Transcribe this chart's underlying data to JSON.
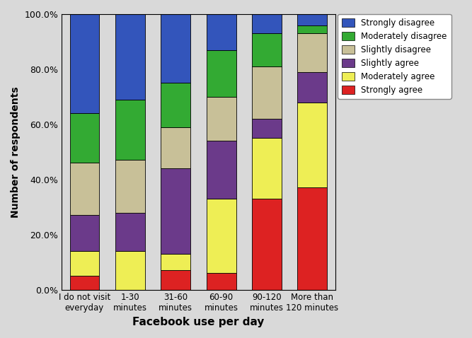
{
  "categories": [
    "I do not visit\neveryday",
    "1-30\nminutes",
    "31-60\nminutes",
    "60-90\nminutes",
    "90-120\nminutes",
    "More than\n120 minutes"
  ],
  "series": {
    "Strongly agree": [
      5.0,
      0.0,
      7.0,
      6.0,
      33.0,
      37.0
    ],
    "Moderately agree": [
      9.0,
      14.0,
      6.0,
      27.0,
      22.0,
      31.0
    ],
    "Slightly agree": [
      13.0,
      14.0,
      31.0,
      21.0,
      7.0,
      11.0
    ],
    "Slightly disagree": [
      19.0,
      19.0,
      15.0,
      16.0,
      19.0,
      14.0
    ],
    "Moderately disagree": [
      18.0,
      22.0,
      16.0,
      17.0,
      12.0,
      3.0
    ],
    "Strongly disagree": [
      36.0,
      31.0,
      25.0,
      13.0,
      7.0,
      4.0
    ]
  },
  "colors": {
    "Strongly agree": "#dd2222",
    "Moderately agree": "#eeee55",
    "Slightly agree": "#6b3a8a",
    "Slightly disagree": "#c8c098",
    "Moderately disagree": "#33aa33",
    "Strongly disagree": "#3355bb"
  },
  "order": [
    "Strongly agree",
    "Moderately agree",
    "Slightly agree",
    "Slightly disagree",
    "Moderately disagree",
    "Strongly disagree"
  ],
  "ylabel": "Number of respondents",
  "xlabel": "Facebook use per day",
  "ylim": [
    0,
    100
  ],
  "yticks": [
    0,
    20,
    40,
    60,
    80,
    100
  ],
  "ytick_labels": [
    "0.0%",
    "20.0%",
    "40.0%",
    "60.0%",
    "80.0%",
    "100.0%"
  ],
  "background_color": "#d9d9d9",
  "plot_background": "#d9d9d9",
  "bar_width": 0.65
}
